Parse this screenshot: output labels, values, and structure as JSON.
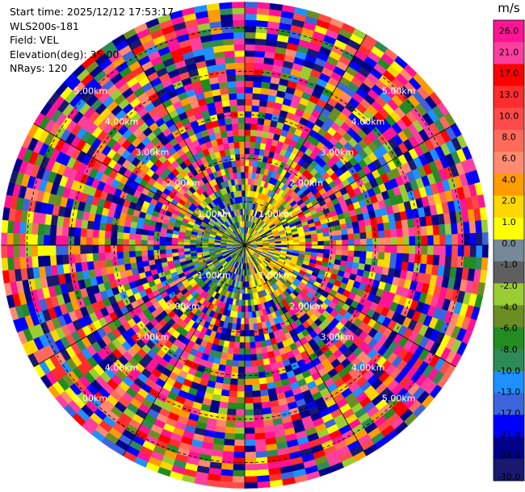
{
  "header": {
    "start_time": "Start time: 2025/12/12 17:53:17",
    "instrument": "WLS200s-181",
    "field": "Field: VEL",
    "elevation": "Elevation(deg): 35.00",
    "nrays": "NRays: 120"
  },
  "chart_data": {
    "type": "heatmap",
    "projection": "polar-ppi",
    "field": "VEL",
    "unit": "m/s",
    "n_rays": 120,
    "elevation_deg": 35.0,
    "range_km": [
      0,
      5.6
    ],
    "range_rings_km": [
      1,
      2,
      3,
      4,
      5
    ],
    "ring_labels": [
      "1.00km",
      "2.00km",
      "3.00km",
      "4.00km",
      "5.00km"
    ],
    "colorbar": {
      "ticks": [
        "26.0",
        "21.0",
        "17.0",
        "13.0",
        "10.0",
        "8.0",
        "6.0",
        "4.0",
        "2.0",
        "1.0",
        "0.0",
        "-1.0",
        "-2.0",
        "-4.0",
        "-6.0",
        "-8.0",
        "-10.0",
        "-13.0",
        "-17.0",
        "-21.0",
        "-26.0",
        "-30.0"
      ],
      "colors": [
        "#ff1493",
        "#ff3fa0",
        "#ff0000",
        "#ff2d2d",
        "#ff4a4a",
        "#ff6b5a",
        "#ff8a70",
        "#ff9c00",
        "#ffd700",
        "#ffff00",
        "#778899",
        "#5f5f5f",
        "#9acd32",
        "#6b8e23",
        "#228b22",
        "#2e8b57",
        "#1e90ff",
        "#3c64dc",
        "#0000ff",
        "#00008b",
        "#191970"
      ]
    }
  }
}
